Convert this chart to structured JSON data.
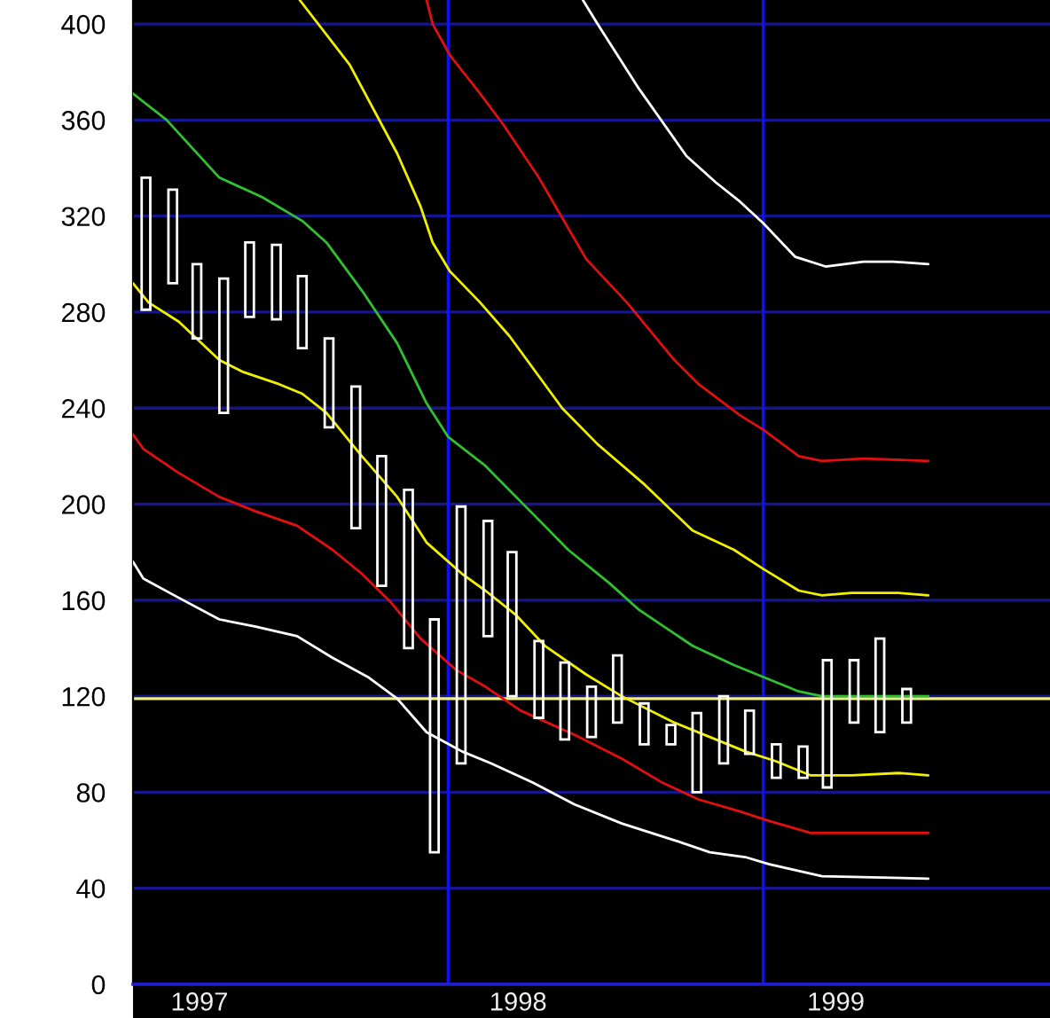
{
  "chart_data": {
    "type": "bar",
    "xlim": [
      "1997-01-01",
      "1999-11-29"
    ],
    "xticks": [
      {
        "value": "1997-03-19",
        "label": "1997"
      },
      {
        "value": "1998-03-23",
        "label": "1998"
      },
      {
        "value": "1999-03-26",
        "label": "1999"
      }
    ],
    "ylim": [
      0,
      410
    ],
    "yticks": [
      0,
      40,
      80,
      120,
      160,
      200,
      240,
      280,
      320,
      360,
      400
    ],
    "grid": "y",
    "ref_lines": [
      {
        "axis": "x",
        "value": "1998-01-01",
        "color": "#1010f0"
      },
      {
        "axis": "x",
        "value": "1999-01-01",
        "color": "#1010f0"
      },
      {
        "axis": "y",
        "value": 119,
        "color": "#f0f080"
      }
    ],
    "series": [
      {
        "color": "#ffffff",
        "x": [
          "1997-01-16",
          "1997-02-16",
          "1997-03-16",
          "1997-04-16",
          "1997-05-16",
          "1997-06-16",
          "1997-07-16",
          "1997-08-16",
          "1997-09-16",
          "1997-10-16",
          "1997-11-16",
          "1997-12-16",
          "1998-01-16",
          "1998-02-16",
          "1998-03-16",
          "1998-04-16",
          "1998-05-16",
          "1998-06-16",
          "1998-07-16",
          "1998-08-16",
          "1998-09-16",
          "1998-10-16",
          "1998-11-16",
          "1998-12-16",
          "1999-01-16",
          "1999-02-16",
          "1999-03-16",
          "1999-04-16",
          "1999-05-16",
          "1999-06-16"
        ],
        "base": [
          281,
          292,
          269,
          238,
          278,
          277,
          265,
          232,
          190,
          166,
          140,
          55,
          92,
          145,
          120,
          111,
          102,
          103,
          109,
          100,
          100,
          80,
          92,
          96,
          86,
          86,
          82,
          109,
          105,
          109
        ],
        "values": [
          55,
          39,
          31,
          56,
          31,
          31,
          30,
          37,
          59,
          54,
          66,
          97,
          107,
          48,
          60,
          32,
          32,
          21,
          28,
          17,
          8,
          33,
          28,
          18,
          14,
          13,
          53,
          26,
          39,
          14
        ]
      },
      {
        "type": "line",
        "color": "#ffffff",
        "x": [
          "1997-01-01",
          "1997-01-13",
          "1997-02-23",
          "1997-04-11",
          "1997-05-23",
          "1997-07-10",
          "1997-08-20",
          "1997-09-30",
          "1997-11-03",
          "1997-12-07",
          "1998-01-17",
          "1998-02-20",
          "1998-04-09",
          "1998-05-27",
          "1998-07-21",
          "1998-09-20",
          "1998-10-31",
          "1998-12-11",
          "1999-01-08",
          "1999-03-10",
          "1999-07-11"
        ],
        "values": [
          176,
          169,
          161,
          152,
          149,
          145,
          136,
          128,
          119,
          105,
          97,
          92,
          84,
          75,
          67,
          60,
          55,
          53,
          50,
          45,
          44
        ]
      },
      {
        "type": "line",
        "color": "#e01010",
        "x": [
          "1997-01-01",
          "1997-01-13",
          "1997-02-23",
          "1997-04-11",
          "1997-05-23",
          "1997-07-10",
          "1997-08-20",
          "1997-09-23",
          "1997-10-27",
          "1997-11-30",
          "1998-01-10",
          "1998-02-13",
          "1998-03-26",
          "1998-05-27",
          "1998-07-21",
          "1998-09-06",
          "1998-10-18",
          "1998-12-05",
          "1999-01-08",
          "1999-02-25",
          "1999-07-11"
        ],
        "values": [
          229,
          223,
          213,
          203,
          197,
          191,
          181,
          171,
          159,
          144,
          131,
          124,
          114,
          104,
          94,
          84,
          77,
          72,
          68,
          63,
          63
        ]
      },
      {
        "type": "line",
        "color": "#f0f000",
        "x": [
          "1997-01-01",
          "1997-01-19",
          "1997-02-23",
          "1997-04-11",
          "1997-05-09",
          "1997-06-19",
          "1997-07-16",
          "1997-08-13",
          "1997-09-23",
          "1997-11-03",
          "1997-12-07",
          "1998-01-17",
          "1998-02-13",
          "1998-03-20",
          "1998-04-23",
          "1998-06-10",
          "1998-07-21",
          "1998-09-20",
          "1998-10-31",
          "1998-12-11",
          "1999-01-15",
          "1999-02-25",
          "1999-04-13",
          "1999-06-07",
          "1999-07-11"
        ],
        "values": [
          292,
          284,
          276,
          260,
          255,
          250,
          246,
          238,
          220,
          203,
          184,
          171,
          164,
          154,
          141,
          129,
          120,
          109,
          103,
          97,
          93,
          87,
          87,
          88,
          87
        ]
      },
      {
        "type": "line",
        "color": "#30c030",
        "x": [
          "1997-01-01",
          "1997-02-09",
          "1997-04-11",
          "1997-05-30",
          "1997-07-16",
          "1997-08-13",
          "1997-09-23",
          "1997-11-03",
          "1997-12-07",
          "1998-01-01",
          "1998-02-13",
          "1998-04-09",
          "1998-05-20",
          "1998-07-07",
          "1998-08-10",
          "1998-10-11",
          "1998-11-28",
          "1999-01-01",
          "1999-02-11",
          "1999-03-10",
          "1999-07-11"
        ],
        "values": [
          371,
          360,
          336,
          328,
          318,
          309,
          289,
          267,
          242,
          228,
          216,
          196,
          181,
          167,
          156,
          141,
          133,
          128,
          122,
          120,
          120
        ]
      },
      {
        "type": "line",
        "color": "#f0f000",
        "x": [
          "1997-07-13",
          "1997-09-09",
          "1997-11-03",
          "1997-11-30",
          "1997-12-14",
          "1998-01-03",
          "1998-02-07",
          "1998-03-13",
          "1998-05-13",
          "1998-06-23",
          "1998-08-17",
          "1998-10-11",
          "1998-11-28",
          "1999-01-01",
          "1999-02-11",
          "1999-03-10",
          "1999-04-13",
          "1999-06-07",
          "1999-07-11"
        ],
        "values": [
          410,
          383,
          346,
          324,
          309,
          297,
          284,
          270,
          240,
          225,
          208,
          189,
          181,
          173,
          164,
          162,
          163,
          163,
          162
        ]
      },
      {
        "type": "line",
        "color": "#e01010",
        "x": [
          "1997-12-07",
          "1997-12-14",
          "1998-01-03",
          "1998-02-07",
          "1998-03-06",
          "1998-04-16",
          "1998-06-10",
          "1998-07-27",
          "1998-09-20",
          "1998-10-18",
          "1998-12-05",
          "1999-01-01",
          "1999-02-11",
          "1999-03-10",
          "1999-04-27",
          "1999-07-11"
        ],
        "values": [
          410,
          400,
          387,
          371,
          358,
          336,
          302,
          284,
          260,
          250,
          237,
          231,
          220,
          218,
          219,
          218
        ]
      },
      {
        "type": "line",
        "color": "#ffffff",
        "x": [
          "1998-06-06",
          "1998-06-23",
          "1998-08-10",
          "1998-10-04",
          "1998-11-07",
          "1998-12-05",
          "1999-01-01",
          "1999-02-07",
          "1999-03-14",
          "1999-04-27",
          "1999-05-31",
          "1999-07-11"
        ],
        "values": [
          410,
          400,
          373,
          345,
          334,
          326,
          317,
          303,
          299,
          301,
          301,
          300
        ]
      }
    ]
  }
}
